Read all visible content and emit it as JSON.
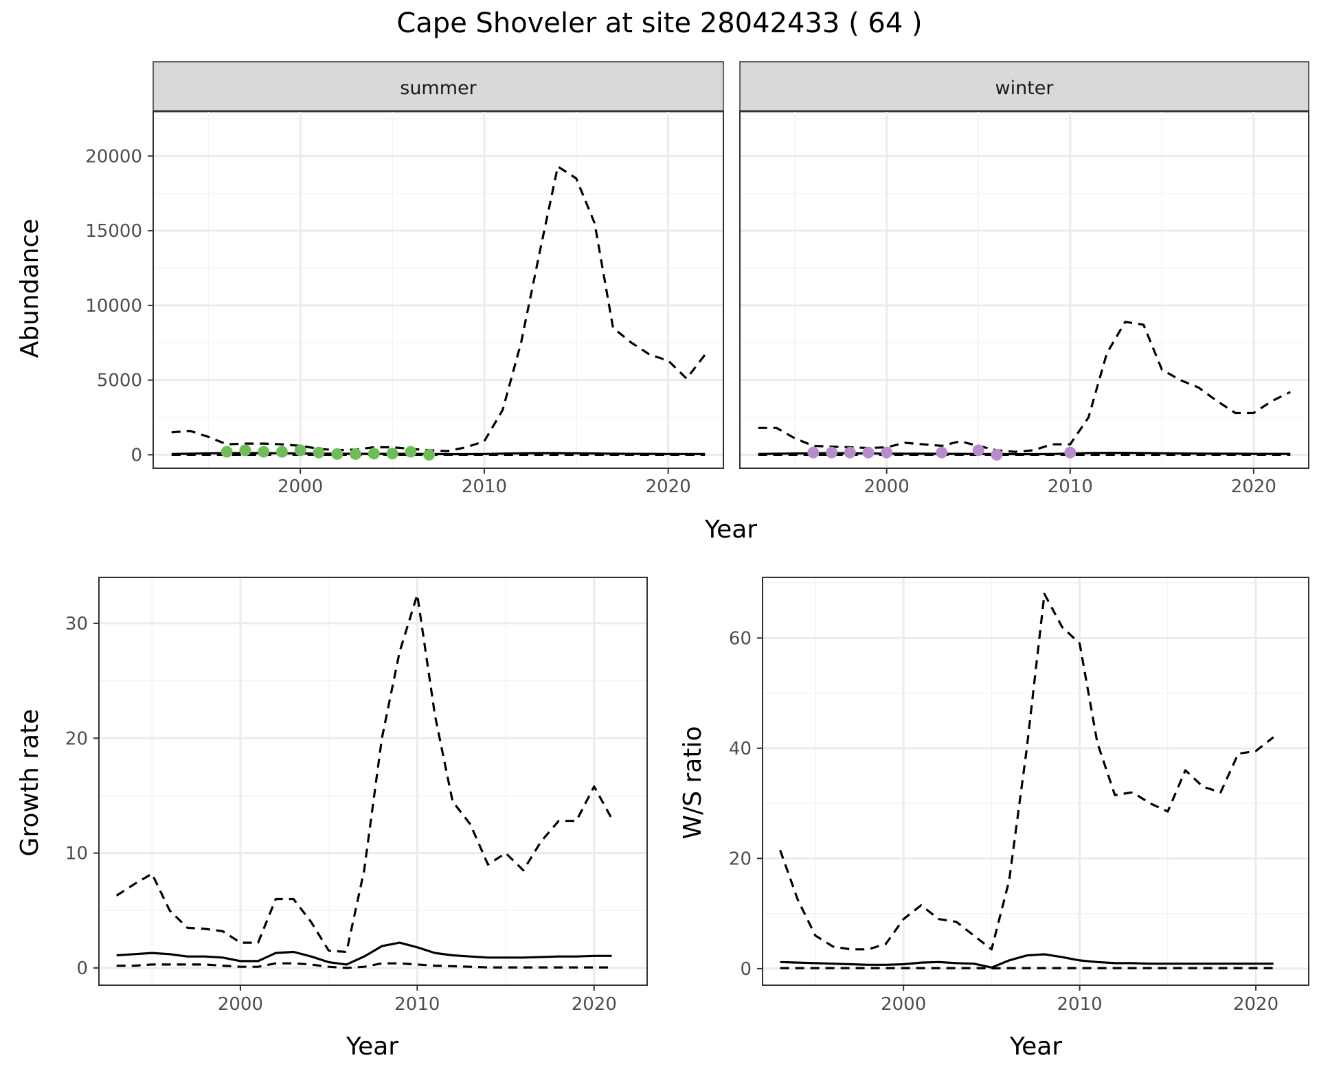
{
  "figure": {
    "title": "Cape Shoveler at site 28042433 ( 64 )"
  },
  "colors": {
    "summer_points": "#6fbd58",
    "winter_points": "#b78ccb",
    "lines": "#000000",
    "strip_bg": "#d9d9d9",
    "grid_major": "#ebebeb",
    "grid_minor": "#f3f3f3"
  },
  "chart_data": [
    {
      "id": "summer",
      "type": "line",
      "facet_label": "summer",
      "xlabel": "Year",
      "ylabel": "Abundance",
      "xlim": [
        1992,
        2023
      ],
      "ylim": [
        -900,
        23000
      ],
      "x_ticks": [
        2000,
        2010,
        2020
      ],
      "y_ticks": [
        0,
        5000,
        10000,
        15000,
        20000
      ],
      "grid": true,
      "series": [
        {
          "role": "upper",
          "style": "dashed",
          "x": [
            1993,
            1994,
            1995,
            1996,
            1997,
            1998,
            1999,
            2000,
            2001,
            2002,
            2003,
            2004,
            2005,
            2006,
            2007,
            2008,
            2009,
            2010,
            2011,
            2012,
            2013,
            2014,
            2015,
            2016,
            2017,
            2018,
            2019,
            2020,
            2021,
            2022
          ],
          "y": [
            1500,
            1600,
            1200,
            700,
            750,
            750,
            700,
            600,
            400,
            300,
            350,
            500,
            500,
            400,
            300,
            250,
            500,
            900,
            3000,
            7500,
            13500,
            19300,
            18500,
            15500,
            8500,
            7500,
            6700,
            6300,
            5100,
            6700
          ]
        },
        {
          "role": "mid",
          "style": "solid",
          "x": [
            1993,
            1994,
            1995,
            1996,
            1997,
            1998,
            1999,
            2000,
            2001,
            2002,
            2003,
            2004,
            2005,
            2006,
            2007,
            2008,
            2009,
            2010,
            2011,
            2012,
            2013,
            2014,
            2015,
            2016,
            2017,
            2018,
            2019,
            2020,
            2021,
            2022
          ],
          "y": [
            50,
            70,
            100,
            110,
            120,
            110,
            100,
            90,
            80,
            70,
            60,
            60,
            60,
            60,
            50,
            40,
            40,
            50,
            80,
            100,
            110,
            110,
            100,
            90,
            70,
            60,
            60,
            50,
            50,
            50
          ]
        },
        {
          "role": "lower",
          "style": "dashed",
          "x": [
            1993,
            1994,
            1995,
            1996,
            1997,
            1998,
            1999,
            2000,
            2001,
            2002,
            2003,
            2004,
            2005,
            2006,
            2007,
            2008,
            2009,
            2010,
            2011,
            2012,
            2013,
            2014,
            2015,
            2016,
            2017,
            2018,
            2019,
            2020,
            2021,
            2022
          ],
          "y": [
            0,
            0,
            0,
            0,
            0,
            0,
            0,
            0,
            0,
            0,
            0,
            0,
            0,
            0,
            0,
            0,
            0,
            0,
            0,
            0,
            0,
            0,
            0,
            0,
            0,
            0,
            0,
            0,
            0,
            0
          ]
        }
      ],
      "points": {
        "x": [
          1996,
          1997,
          1998,
          1999,
          2000,
          2001,
          2002,
          2003,
          2004,
          2005,
          2006,
          2007
        ],
        "y": [
          200,
          300,
          200,
          200,
          300,
          150,
          50,
          50,
          80,
          80,
          200,
          0
        ]
      }
    },
    {
      "id": "winter",
      "type": "line",
      "facet_label": "winter",
      "xlabel": "Year",
      "ylabel": "Abundance",
      "xlim": [
        1992,
        2023
      ],
      "ylim": [
        -900,
        23000
      ],
      "x_ticks": [
        2000,
        2010,
        2020
      ],
      "y_ticks": [
        0,
        5000,
        10000,
        15000,
        20000
      ],
      "grid": true,
      "series": [
        {
          "role": "upper",
          "style": "dashed",
          "x": [
            1993,
            1994,
            1995,
            1996,
            1997,
            1998,
            1999,
            2000,
            2001,
            2002,
            2003,
            2004,
            2005,
            2006,
            2007,
            2008,
            2009,
            2010,
            2011,
            2012,
            2013,
            2014,
            2015,
            2016,
            2017,
            2018,
            2019,
            2020,
            2021,
            2022
          ],
          "y": [
            1800,
            1800,
            1100,
            600,
            550,
            500,
            450,
            500,
            800,
            700,
            600,
            900,
            600,
            300,
            200,
            300,
            700,
            700,
            2500,
            6800,
            8900,
            8700,
            5700,
            5000,
            4500,
            3600,
            2800,
            2800,
            3600,
            4200
          ]
        },
        {
          "role": "mid",
          "style": "solid",
          "x": [
            1993,
            1994,
            1995,
            1996,
            1997,
            1998,
            1999,
            2000,
            2001,
            2002,
            2003,
            2004,
            2005,
            2006,
            2007,
            2008,
            2009,
            2010,
            2011,
            2012,
            2013,
            2014,
            2015,
            2016,
            2017,
            2018,
            2019,
            2020,
            2021,
            2022
          ],
          "y": [
            50,
            70,
            90,
            100,
            110,
            100,
            90,
            80,
            70,
            70,
            60,
            60,
            50,
            50,
            40,
            40,
            50,
            80,
            120,
            130,
            130,
            120,
            100,
            90,
            80,
            70,
            70,
            60,
            60,
            60
          ]
        },
        {
          "role": "lower",
          "style": "dashed",
          "x": [
            1993,
            1994,
            1995,
            1996,
            1997,
            1998,
            1999,
            2000,
            2001,
            2002,
            2003,
            2004,
            2005,
            2006,
            2007,
            2008,
            2009,
            2010,
            2011,
            2012,
            2013,
            2014,
            2015,
            2016,
            2017,
            2018,
            2019,
            2020,
            2021,
            2022
          ],
          "y": [
            0,
            0,
            0,
            0,
            0,
            0,
            0,
            0,
            0,
            0,
            0,
            0,
            0,
            0,
            0,
            0,
            0,
            0,
            0,
            0,
            0,
            0,
            0,
            0,
            0,
            0,
            0,
            0,
            0,
            0
          ]
        }
      ],
      "points": {
        "x": [
          1996,
          1997,
          1998,
          1999,
          2000,
          2003,
          2005,
          2006,
          2010
        ],
        "y": [
          150,
          150,
          150,
          150,
          150,
          150,
          300,
          0,
          150
        ]
      }
    },
    {
      "id": "growth",
      "type": "line",
      "xlabel": "Year",
      "ylabel": "Growth rate",
      "xlim": [
        1992,
        2023
      ],
      "ylim": [
        -1.5,
        34
      ],
      "x_ticks": [
        2000,
        2010,
        2020
      ],
      "y_ticks": [
        0,
        10,
        20,
        30
      ],
      "grid": true,
      "series": [
        {
          "role": "upper",
          "style": "dashed",
          "x": [
            1993,
            1994,
            1995,
            1996,
            1997,
            1998,
            1999,
            2000,
            2001,
            2002,
            2003,
            2004,
            2005,
            2006,
            2007,
            2008,
            2009,
            2010,
            2011,
            2012,
            2013,
            2014,
            2015,
            2016,
            2017,
            2018,
            2019,
            2020,
            2021
          ],
          "y": [
            6.3,
            7.3,
            8.2,
            5,
            3.5,
            3.4,
            3.2,
            2.2,
            2.2,
            6,
            6,
            4,
            1.5,
            1.4,
            8.5,
            20,
            27.5,
            32.5,
            22,
            14.5,
            12.5,
            9,
            10,
            8.5,
            11,
            12.8,
            12.8,
            15.8,
            13
          ]
        },
        {
          "role": "mid",
          "style": "solid",
          "x": [
            1993,
            1994,
            1995,
            1996,
            1997,
            1998,
            1999,
            2000,
            2001,
            2002,
            2003,
            2004,
            2005,
            2006,
            2007,
            2008,
            2009,
            2010,
            2011,
            2012,
            2013,
            2014,
            2015,
            2016,
            2017,
            2018,
            2019,
            2020,
            2021
          ],
          "y": [
            1.1,
            1.2,
            1.3,
            1.2,
            1,
            1,
            0.9,
            0.6,
            0.6,
            1.3,
            1.4,
            1,
            0.5,
            0.3,
            1,
            1.9,
            2.2,
            1.8,
            1.3,
            1.1,
            1,
            0.9,
            0.9,
            0.9,
            0.95,
            1,
            1,
            1.05,
            1.05
          ]
        },
        {
          "role": "lower",
          "style": "dashed",
          "x": [
            1993,
            1994,
            1995,
            1996,
            1997,
            1998,
            1999,
            2000,
            2001,
            2002,
            2003,
            2004,
            2005,
            2006,
            2007,
            2008,
            2009,
            2010,
            2011,
            2012,
            2013,
            2014,
            2015,
            2016,
            2017,
            2018,
            2019,
            2020,
            2021
          ],
          "y": [
            0.2,
            0.2,
            0.3,
            0.3,
            0.3,
            0.3,
            0.2,
            0.1,
            0.1,
            0.4,
            0.4,
            0.3,
            0.1,
            0,
            0.1,
            0.4,
            0.4,
            0.3,
            0.2,
            0.15,
            0.1,
            0.05,
            0.05,
            0.05,
            0.05,
            0.05,
            0.05,
            0.05,
            0.05
          ]
        }
      ]
    },
    {
      "id": "ratio",
      "type": "line",
      "xlabel": "Year",
      "ylabel": "W/S ratio",
      "xlim": [
        1992,
        2023
      ],
      "ylim": [
        -3,
        71
      ],
      "x_ticks": [
        2000,
        2010,
        2020
      ],
      "y_ticks": [
        0,
        20,
        40,
        60
      ],
      "grid": true,
      "series": [
        {
          "role": "upper",
          "style": "dashed",
          "x": [
            1993,
            1994,
            1995,
            1996,
            1997,
            1998,
            1999,
            2000,
            2001,
            2002,
            2003,
            2004,
            2005,
            2006,
            2007,
            2008,
            2009,
            2010,
            2011,
            2012,
            2013,
            2014,
            2015,
            2016,
            2017,
            2018,
            2019,
            2020,
            2021
          ],
          "y": [
            21.5,
            12.5,
            6,
            4,
            3.5,
            3.5,
            4.5,
            9,
            11.5,
            9,
            8.5,
            6,
            3.5,
            16,
            40,
            68,
            62,
            59,
            41,
            31.5,
            32,
            30,
            28.5,
            36,
            33,
            32,
            39,
            39.5,
            42
          ]
        },
        {
          "role": "mid",
          "style": "solid",
          "x": [
            1993,
            1994,
            1995,
            1996,
            1997,
            1998,
            1999,
            2000,
            2001,
            2002,
            2003,
            2004,
            2005,
            2006,
            2007,
            2008,
            2009,
            2010,
            2011,
            2012,
            2013,
            2014,
            2015,
            2016,
            2017,
            2018,
            2019,
            2020,
            2021
          ],
          "y": [
            1.2,
            1.1,
            1,
            0.9,
            0.8,
            0.7,
            0.7,
            0.8,
            1.1,
            1.2,
            1,
            0.9,
            0.2,
            1.5,
            2.4,
            2.6,
            2.1,
            1.5,
            1.2,
            1,
            1,
            0.9,
            0.9,
            0.9,
            0.9,
            0.9,
            0.9,
            0.9,
            0.9
          ]
        },
        {
          "role": "lower",
          "style": "dashed",
          "x": [
            1993,
            1994,
            1995,
            1996,
            1997,
            1998,
            1999,
            2000,
            2001,
            2002,
            2003,
            2004,
            2005,
            2006,
            2007,
            2008,
            2009,
            2010,
            2011,
            2012,
            2013,
            2014,
            2015,
            2016,
            2017,
            2018,
            2019,
            2020,
            2021
          ],
          "y": [
            0.1,
            0.1,
            0.1,
            0.1,
            0.1,
            0.1,
            0.1,
            0.1,
            0.1,
            0.1,
            0.1,
            0.1,
            0.05,
            0.1,
            0.1,
            0.1,
            0.1,
            0.1,
            0.1,
            0.1,
            0.1,
            0.1,
            0.1,
            0.1,
            0.1,
            0.1,
            0.1,
            0.1,
            0.1
          ]
        }
      ]
    }
  ]
}
